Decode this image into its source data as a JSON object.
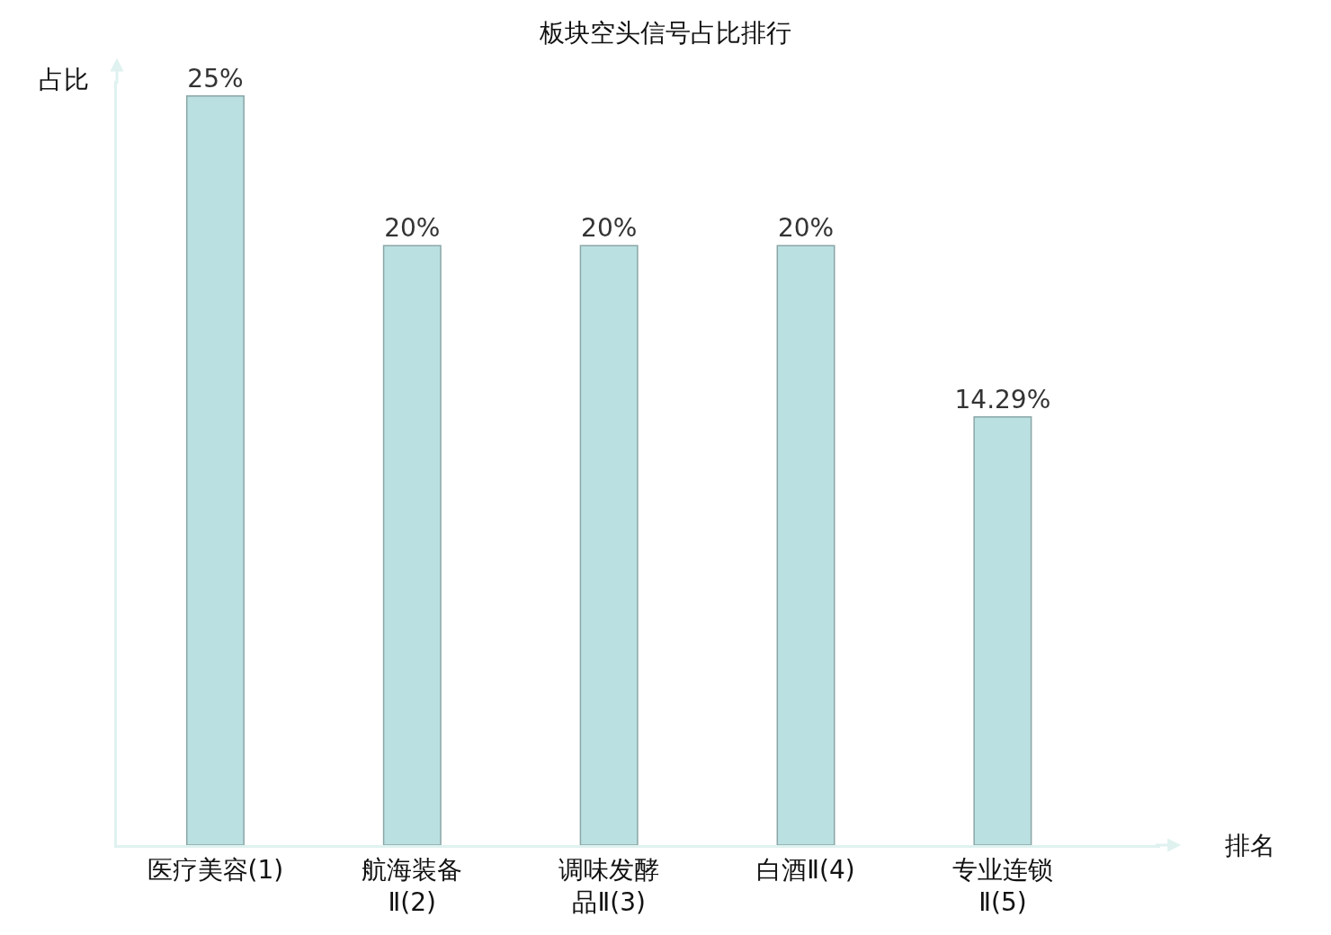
{
  "chart_data": {
    "type": "bar",
    "title": "板块空头信号占比排行",
    "xlabel": "排名",
    "ylabel": "占比",
    "categories": [
      "医疗美容(1)",
      "航海装备Ⅱ(2)",
      "调味发酵品Ⅱ(3)",
      "白酒Ⅱ(4)",
      "专业连锁Ⅱ(5)"
    ],
    "values": [
      25,
      20,
      20,
      20,
      14.29
    ],
    "value_labels": [
      "25%",
      "20%",
      "20%",
      "20%",
      "14.29%"
    ],
    "color": "#bbe0e1"
  }
}
